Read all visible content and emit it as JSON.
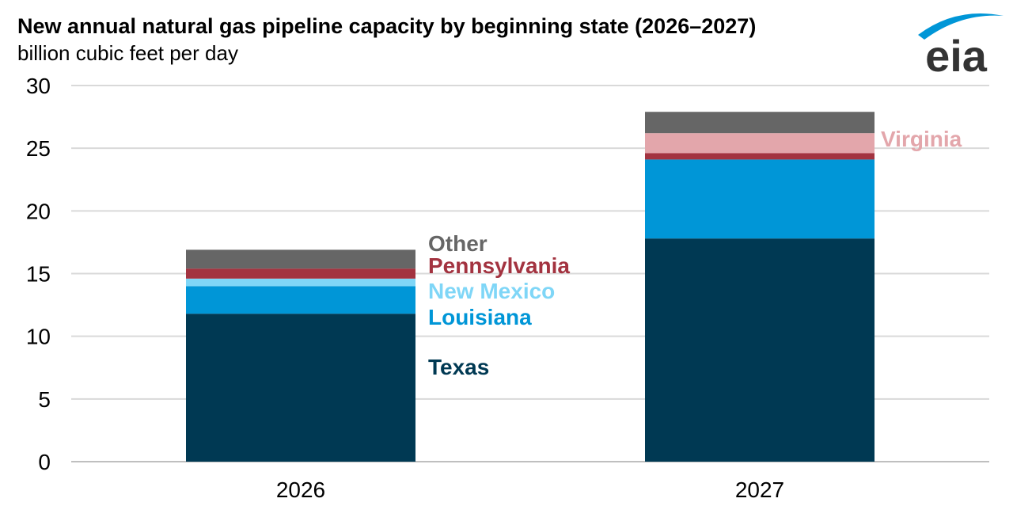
{
  "chart_data": {
    "type": "bar",
    "stacked": true,
    "title": "New annual natural gas pipeline capacity by beginning state (2026–2027)",
    "subtitle": "billion cubic feet per day",
    "categories": [
      "2026",
      "2027"
    ],
    "ylim": [
      0,
      30
    ],
    "yticks": [
      0,
      5,
      10,
      15,
      20,
      25,
      30
    ],
    "grid": true,
    "series": [
      {
        "name": "Texas",
        "color": "#003953",
        "values": [
          11.8,
          17.8
        ]
      },
      {
        "name": "Louisiana",
        "color": "#0096d7",
        "values": [
          2.2,
          6.3
        ]
      },
      {
        "name": "New Mexico",
        "color": "#7fd6f7",
        "values": [
          0.6,
          0.0
        ]
      },
      {
        "name": "Pennsylvania",
        "color": "#a33340",
        "values": [
          0.8,
          0.5
        ]
      },
      {
        "name": "Virginia",
        "color": "#e3a6ab",
        "values": [
          0.0,
          1.6
        ]
      },
      {
        "name": "Other",
        "color": "#666666",
        "values": [
          1.5,
          1.7
        ]
      }
    ],
    "labels": [
      {
        "series": "Other",
        "next_to_category": "2026"
      },
      {
        "series": "Pennsylvania",
        "next_to_category": "2026"
      },
      {
        "series": "New Mexico",
        "next_to_category": "2026"
      },
      {
        "series": "Louisiana",
        "next_to_category": "2026"
      },
      {
        "series": "Texas",
        "next_to_category": "2026"
      },
      {
        "series": "Virginia",
        "next_to_category": "2027"
      }
    ]
  },
  "logo": {
    "text": "eia",
    "icon": "eia-logo",
    "color": "#333333",
    "accent": "#0096d7"
  }
}
